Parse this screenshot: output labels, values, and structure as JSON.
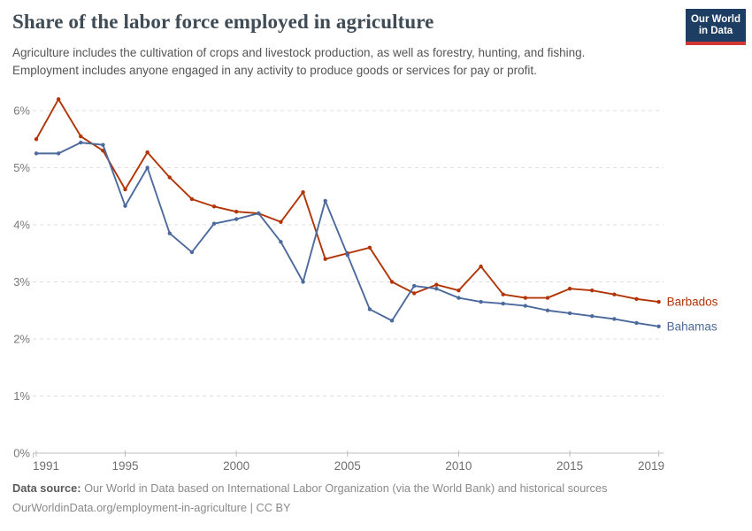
{
  "header": {
    "title": "Share of the labor force employed in agriculture",
    "subtitle_line1": "Agriculture includes the cultivation of crops and livestock production, as well as forestry, hunting, and fishing.",
    "subtitle_line2": "Employment includes anyone engaged in any activity to produce goods or services for pay or profit."
  },
  "logo": {
    "line1": "Our World",
    "line2": "in Data",
    "bg_color": "#1d3d63",
    "accent_color": "#d13832"
  },
  "chart_data": {
    "type": "line",
    "title": "Share of the labor force employed in agriculture",
    "x": [
      1991,
      1992,
      1993,
      1994,
      1995,
      1996,
      1997,
      1998,
      1999,
      2000,
      2001,
      2002,
      2003,
      2004,
      2005,
      2006,
      2007,
      2008,
      2009,
      2010,
      2011,
      2012,
      2013,
      2014,
      2015,
      2016,
      2017,
      2018,
      2019
    ],
    "series": [
      {
        "name": "Barbados",
        "color": "#B13507",
        "values": [
          5.5,
          6.2,
          5.55,
          5.3,
          4.62,
          5.27,
          4.83,
          4.45,
          4.32,
          4.23,
          4.2,
          4.05,
          4.57,
          3.4,
          3.5,
          3.6,
          3.0,
          2.8,
          2.95,
          2.85,
          3.27,
          2.78,
          2.72,
          2.72,
          2.88,
          2.85,
          2.78,
          2.7,
          2.65
        ]
      },
      {
        "name": "Bahamas",
        "color": "#4C6A9C",
        "values": [
          5.25,
          5.25,
          5.44,
          5.4,
          4.33,
          5.0,
          3.85,
          3.52,
          4.02,
          4.1,
          4.2,
          3.7,
          3.0,
          4.42,
          3.47,
          2.52,
          2.32,
          2.93,
          2.88,
          2.72,
          2.65,
          2.62,
          2.58,
          2.5,
          2.45,
          2.4,
          2.35,
          2.28,
          2.22
        ]
      }
    ],
    "xticks": [
      1991,
      1995,
      2000,
      2005,
      2010,
      2015,
      2019
    ],
    "xtick_labels": [
      "1991",
      "1995",
      "2000",
      "2005",
      "2010",
      "2015",
      "2019"
    ],
    "yticks": [
      0,
      1,
      2,
      3,
      4,
      5,
      6
    ],
    "ytick_labels": [
      "0%",
      "1%",
      "2%",
      "3%",
      "4%",
      "5%",
      "6%"
    ],
    "xlim": [
      1991,
      2019
    ],
    "ylim": [
      0,
      6.4
    ],
    "grid": "horizontal-dashed",
    "legend_position": "end-of-line-labels",
    "ylabel": "",
    "xlabel": ""
  },
  "footer": {
    "source_label": "Data source:",
    "source_text": " Our World in Data based on International Labor Organization (via the World Bank) and historical sources",
    "link_line": "OurWorldinData.org/employment-in-agriculture | CC BY"
  }
}
